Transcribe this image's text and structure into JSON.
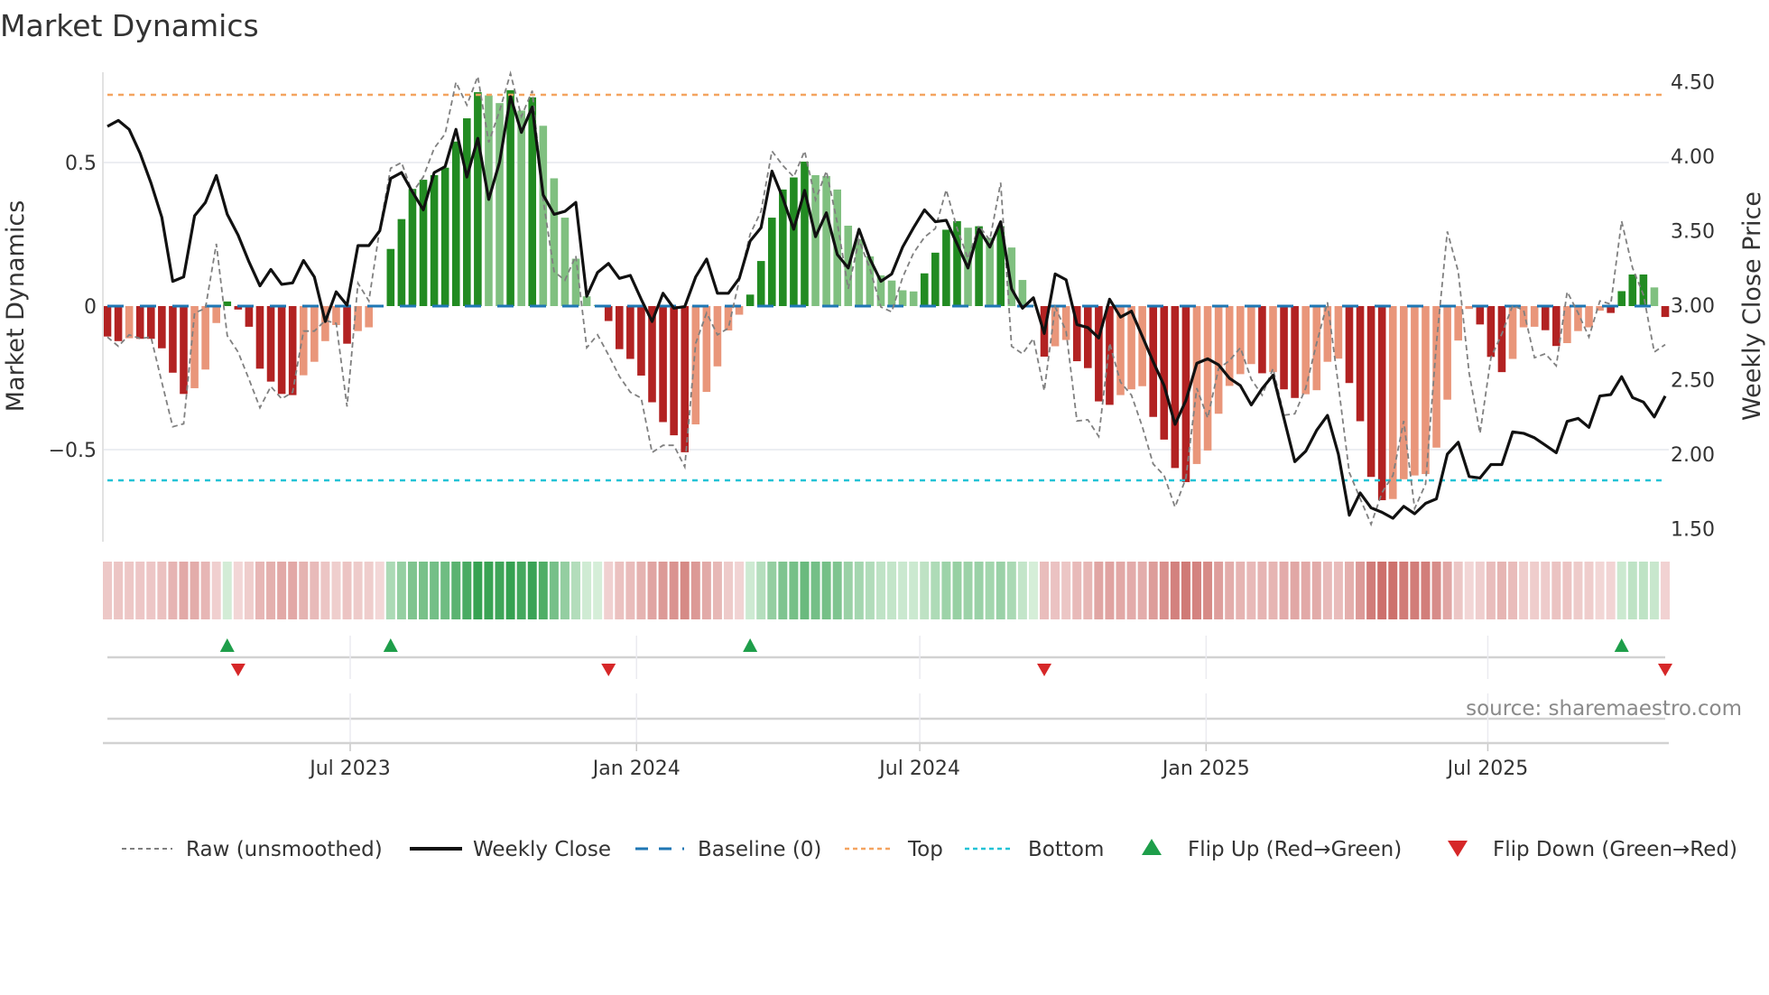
{
  "title": "Market Dynamics",
  "source": "source: sharemaestro.com",
  "colors": {
    "bar_up_strong": "#228b22",
    "bar_up_weak": "#80c080",
    "bar_down_strong": "#b22222",
    "bar_down_weak": "#e9967a",
    "price_line": "#111111",
    "raw_line": "#808080",
    "baseline": "#1f77b4",
    "top": "#f4a460",
    "bottom": "#22c3d6",
    "flip_up": "#1e9e4a",
    "flip_down": "#d62728",
    "heat_green_light": "#d6eed9",
    "heat_green_dark": "#2f9e4c",
    "heat_red_light": "#f3d8d8",
    "heat_red_dark": "#c7605b"
  },
  "chart_data": {
    "type": "bar",
    "title": "Market Dynamics",
    "xlabel": "",
    "ylabel": "Market Dynamics",
    "ylabel_right": "Weekly Close Price",
    "x_start": "2023-01-26",
    "x_step_days": 7,
    "ylim": [
      -0.82,
      0.81
    ],
    "ylim_right": [
      1.41,
      4.56
    ],
    "grid": true,
    "legend_position": "bottom",
    "y_ticks": [
      {
        "value": 0.5,
        "label": "0.5"
      },
      {
        "value": 0,
        "label": "0"
      },
      {
        "value": -0.5,
        "label": "−0.5"
      }
    ],
    "y_right_ticks": [
      {
        "value": 4.5,
        "label": "4.50"
      },
      {
        "value": 4.0,
        "label": "4.00"
      },
      {
        "value": 3.5,
        "label": "3.50"
      },
      {
        "value": 3.0,
        "label": "3.00"
      },
      {
        "value": 2.5,
        "label": "2.50"
      },
      {
        "value": 2.0,
        "label": "2.00"
      },
      {
        "value": 1.5,
        "label": "1.50"
      }
    ],
    "x_ticks": [
      {
        "date": "2023-07-01",
        "label": "Jul 2023"
      },
      {
        "date": "2024-01-01",
        "label": "Jan 2024"
      },
      {
        "date": "2024-07-01",
        "label": "Jul 2024"
      },
      {
        "date": "2025-01-01",
        "label": "Jan 2025"
      },
      {
        "date": "2025-07-01",
        "label": "Jul 2025"
      }
    ],
    "top_level": 0.736,
    "bottom_level": -0.607,
    "baseline": 0,
    "series": [
      {
        "name": "Market Dynamics",
        "axis": "left",
        "values": [
          -0.106,
          -0.122,
          -0.112,
          -0.114,
          -0.114,
          -0.147,
          -0.232,
          -0.306,
          -0.286,
          -0.221,
          -0.059,
          0.016,
          -0.012,
          -0.072,
          -0.218,
          -0.263,
          -0.306,
          -0.31,
          -0.241,
          -0.194,
          -0.122,
          -0.066,
          -0.131,
          -0.087,
          -0.074,
          -0.004,
          0.199,
          0.303,
          0.408,
          0.44,
          0.456,
          0.482,
          0.573,
          0.654,
          0.745,
          0.734,
          0.707,
          0.752,
          0.681,
          0.727,
          0.628,
          0.445,
          0.308,
          0.165,
          0.034,
          0.004,
          -0.052,
          -0.15,
          -0.184,
          -0.242,
          -0.335,
          -0.404,
          -0.45,
          -0.509,
          -0.412,
          -0.299,
          -0.21,
          -0.085,
          -0.03,
          0.04,
          0.157,
          0.308,
          0.406,
          0.448,
          0.503,
          0.456,
          0.453,
          0.406,
          0.28,
          0.233,
          0.173,
          0.107,
          0.089,
          0.055,
          0.051,
          0.114,
          0.186,
          0.266,
          0.296,
          0.273,
          0.278,
          0.238,
          0.278,
          0.204,
          0.091,
          0.004,
          -0.176,
          -0.14,
          -0.118,
          -0.192,
          -0.216,
          -0.332,
          -0.344,
          -0.31,
          -0.29,
          -0.279,
          -0.386,
          -0.465,
          -0.564,
          -0.613,
          -0.55,
          -0.503,
          -0.375,
          -0.278,
          -0.237,
          -0.202,
          -0.234,
          -0.23,
          -0.29,
          -0.32,
          -0.307,
          -0.293,
          -0.194,
          -0.183,
          -0.268,
          -0.401,
          -0.595,
          -0.676,
          -0.672,
          -0.603,
          -0.59,
          -0.585,
          -0.493,
          -0.326,
          -0.12,
          -0.01,
          -0.064,
          -0.177,
          -0.23,
          -0.184,
          -0.074,
          -0.072,
          -0.084,
          -0.139,
          -0.129,
          -0.087,
          -0.074,
          -0.016,
          -0.024,
          0.052,
          0.11,
          0.11,
          0.065,
          -0.038
        ]
      },
      {
        "name": "Raw (unsmoothed)",
        "axis": "left",
        "values": [
          -0.108,
          -0.14,
          -0.1,
          -0.113,
          -0.108,
          -0.265,
          -0.42,
          -0.41,
          -0.024,
          -0.008,
          0.217,
          -0.103,
          -0.16,
          -0.255,
          -0.354,
          -0.28,
          -0.323,
          -0.3,
          -0.087,
          -0.087,
          -0.05,
          -0.06,
          -0.35,
          0.08,
          0.018,
          0.27,
          0.48,
          0.5,
          0.395,
          0.45,
          0.55,
          0.6,
          0.78,
          0.7,
          0.8,
          0.57,
          0.68,
          0.81,
          0.66,
          0.75,
          0.37,
          0.12,
          0.09,
          0.175,
          -0.145,
          -0.1,
          -0.17,
          -0.245,
          -0.3,
          -0.32,
          -0.51,
          -0.485,
          -0.485,
          -0.56,
          -0.13,
          -0.024,
          -0.1,
          -0.077,
          0.09,
          0.25,
          0.33,
          0.54,
          0.49,
          0.45,
          0.54,
          0.37,
          0.47,
          0.29,
          0.06,
          0.23,
          0.13,
          -0.003,
          -0.02,
          0.1,
          0.185,
          0.24,
          0.27,
          0.405,
          0.27,
          0.165,
          0.28,
          0.23,
          0.43,
          -0.14,
          -0.166,
          -0.113,
          -0.295,
          -0.003,
          -0.087,
          -0.4,
          -0.396,
          -0.454,
          -0.129,
          -0.265,
          -0.31,
          -0.42,
          -0.55,
          -0.59,
          -0.7,
          -0.6,
          -0.286,
          -0.39,
          -0.218,
          -0.19,
          -0.145,
          -0.255,
          -0.31,
          -0.218,
          -0.38,
          -0.375,
          -0.286,
          -0.129,
          0.013,
          -0.276,
          -0.58,
          -0.67,
          -0.76,
          -0.65,
          -0.59,
          -0.4,
          -0.705,
          -0.62,
          -0.13,
          0.26,
          0.12,
          -0.234,
          -0.443,
          -0.18,
          -0.097,
          0.002,
          -0.014,
          -0.18,
          -0.166,
          -0.208,
          0.05,
          -0.024,
          -0.108,
          0.018,
          0.007,
          0.296,
          0.133,
          0.039,
          -0.16,
          -0.134
        ]
      },
      {
        "name": "Weekly Close",
        "axis": "right",
        "values": [
          4.2,
          4.24,
          4.18,
          4.02,
          3.82,
          3.59,
          3.16,
          3.19,
          3.6,
          3.69,
          3.87,
          3.61,
          3.47,
          3.29,
          3.13,
          3.24,
          3.14,
          3.15,
          3.3,
          3.19,
          2.89,
          3.09,
          3.0,
          3.4,
          3.4,
          3.5,
          3.85,
          3.89,
          3.76,
          3.64,
          3.89,
          3.93,
          4.18,
          3.86,
          4.12,
          3.71,
          3.96,
          4.4,
          4.16,
          4.33,
          3.74,
          3.61,
          3.63,
          3.69,
          3.06,
          3.22,
          3.28,
          3.18,
          3.2,
          3.04,
          2.89,
          3.08,
          2.98,
          2.99,
          3.19,
          3.31,
          3.08,
          3.08,
          3.18,
          3.43,
          3.52,
          3.9,
          3.72,
          3.51,
          3.77,
          3.46,
          3.62,
          3.34,
          3.25,
          3.51,
          3.31,
          3.16,
          3.21,
          3.39,
          3.52,
          3.64,
          3.56,
          3.57,
          3.41,
          3.25,
          3.51,
          3.39,
          3.56,
          3.11,
          2.98,
          3.05,
          2.81,
          3.21,
          3.17,
          2.87,
          2.85,
          2.78,
          3.04,
          2.92,
          2.96,
          2.79,
          2.62,
          2.46,
          2.2,
          2.36,
          2.61,
          2.64,
          2.6,
          2.51,
          2.46,
          2.33,
          2.44,
          2.53,
          2.24,
          1.95,
          2.02,
          2.16,
          2.26,
          2.0,
          1.59,
          1.74,
          1.64,
          1.61,
          1.57,
          1.65,
          1.6,
          1.67,
          1.7,
          2.0,
          2.08,
          1.85,
          1.84,
          1.93,
          1.93,
          2.15,
          2.14,
          2.11,
          2.06,
          2.01,
          2.22,
          2.24,
          2.18,
          2.39,
          2.4,
          2.52,
          2.38,
          2.35,
          2.25,
          2.39
        ]
      }
    ],
    "flips": {
      "up": [
        11,
        26,
        59,
        139
      ],
      "down": [
        12,
        46,
        86,
        143
      ]
    },
    "legend": [
      {
        "key": "raw",
        "label": "Raw (unsmoothed)"
      },
      {
        "key": "close",
        "label": "Weekly Close"
      },
      {
        "key": "baseline",
        "label": "Baseline (0)"
      },
      {
        "key": "top",
        "label": "Top"
      },
      {
        "key": "bottom",
        "label": "Bottom"
      },
      {
        "key": "flip_up",
        "label": "Flip Up (Red→Green)"
      },
      {
        "key": "flip_down",
        "label": "Flip Down (Green→Red)"
      }
    ]
  }
}
